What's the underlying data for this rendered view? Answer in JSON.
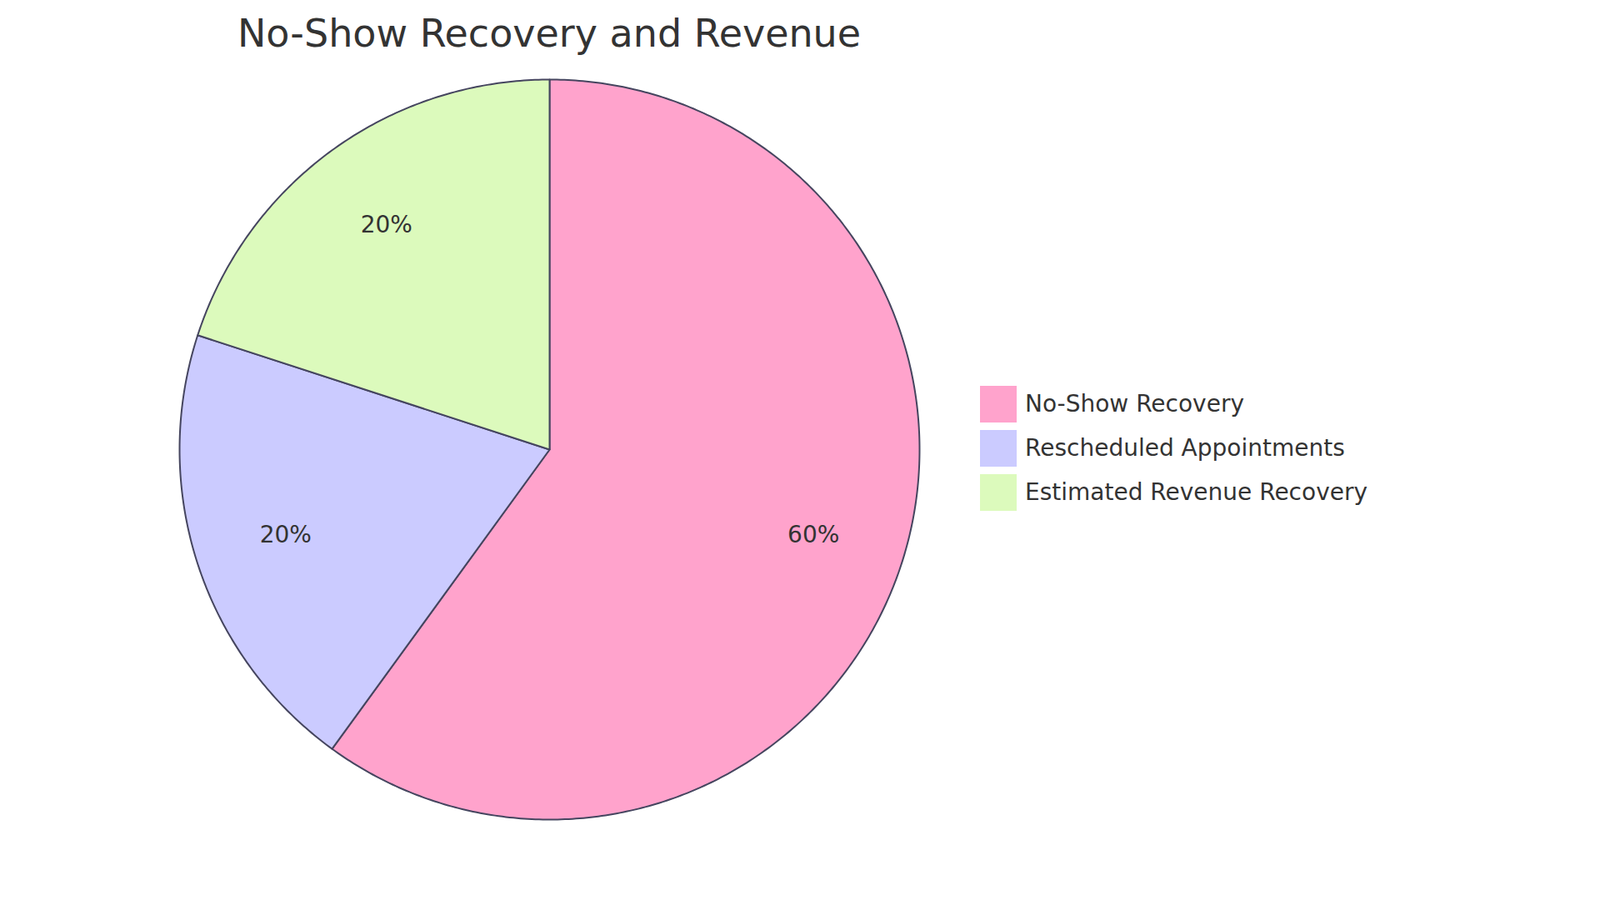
{
  "chart_data": {
    "type": "pie",
    "title": "No-Show Recovery and Revenue",
    "categories": [
      "No-Show Recovery",
      "Rescheduled Appointments",
      "Estimated Revenue Recovery"
    ],
    "values": [
      60,
      20,
      20
    ],
    "value_labels": [
      "60%",
      "20%",
      "20%"
    ],
    "colors": [
      "#FFA3CC",
      "#CBCBFF",
      "#DCFABC"
    ],
    "data_labels": true,
    "legend": "right"
  }
}
